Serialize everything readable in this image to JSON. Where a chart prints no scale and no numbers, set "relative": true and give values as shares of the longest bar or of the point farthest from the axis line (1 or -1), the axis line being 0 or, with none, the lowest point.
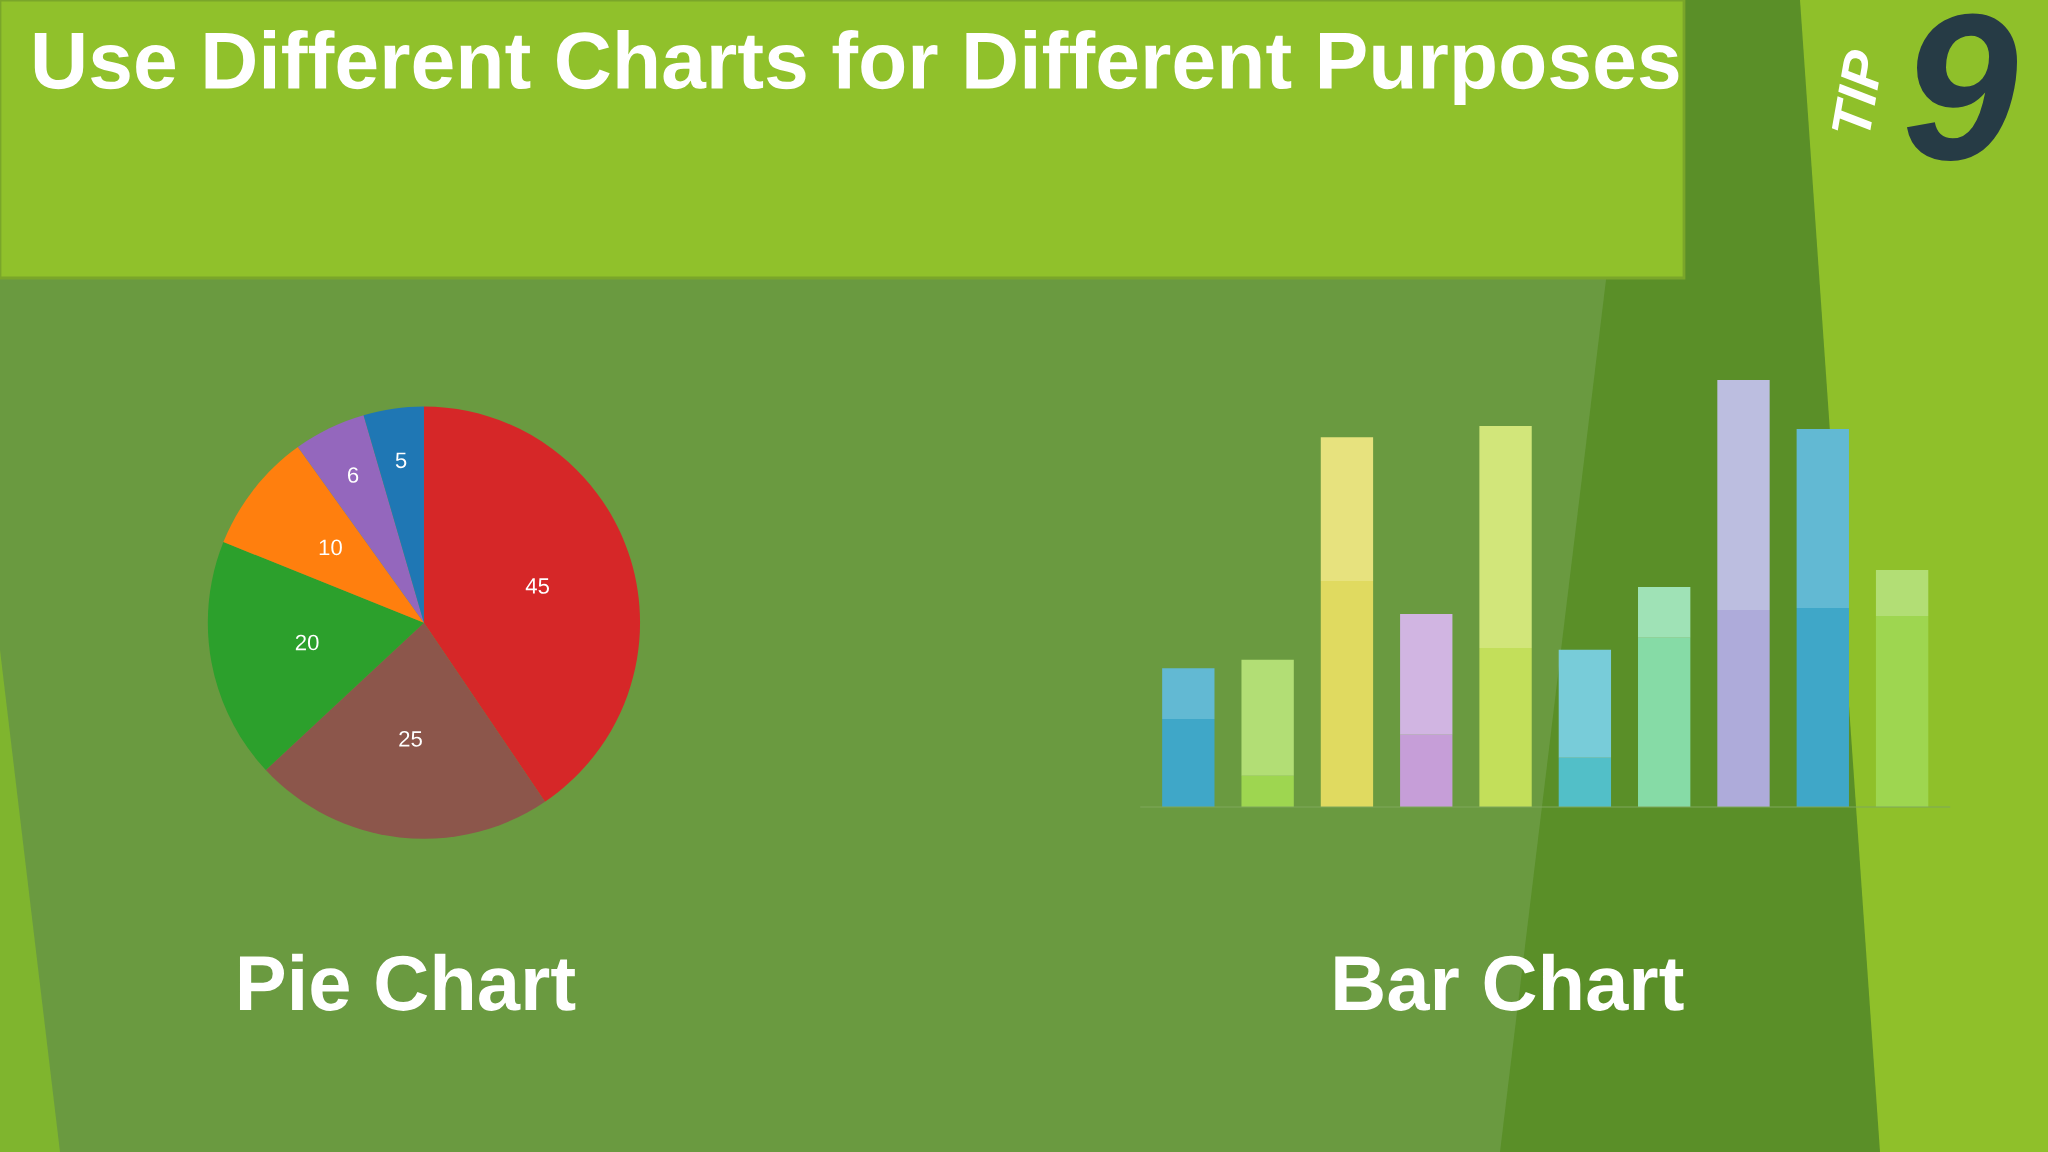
{
  "chart_data": [
    {
      "type": "pie",
      "title": "Pie Chart",
      "categories": [
        null,
        null,
        null,
        null,
        null,
        null
      ],
      "values": [
        45,
        25,
        20,
        10,
        6,
        5
      ],
      "colors": [
        "#d62728",
        "#8c564b",
        "#2ca02c",
        "#ff7f0e",
        "#9467bd",
        "#1f77b4"
      ],
      "data_labels": true,
      "annotations": [
        "Use Different Charts for Different Purposes",
        "TIP",
        "9"
      ]
    },
    {
      "type": "bar",
      "title": "Bar Chart",
      "relative": true,
      "stacked": true,
      "grid": false,
      "categories": [
        null,
        null,
        null,
        null,
        null,
        null,
        null,
        null,
        null,
        null
      ],
      "series": [
        {
          "values": [
            0.206,
            0.073,
            0.529,
            0.169,
            0.372,
            0.115,
            0.396,
            0.461,
            0.466,
            0.447
          ],
          "colors": [
            "#3fa7c8",
            "#9ed650",
            "#e0da60",
            "#c69ed8",
            "#c3df5a",
            "#52bfc8",
            "#86dba6",
            "#aeabda",
            "#3fa7c8",
            "#9ed650"
          ]
        },
        {
          "values": [
            0.119,
            0.272,
            0.337,
            0.283,
            0.52,
            0.253,
            0.119,
            0.539,
            0.419,
            0.108
          ],
          "colors": [
            "#62b9d3",
            "#b2de75",
            "#e7e27e",
            "#d1b5e2",
            "#d2e67a",
            "#78ccd9",
            "#9fe2b6",
            "#bcbee0",
            "#62b9d3",
            "#b2de75"
          ]
        }
      ]
    }
  ]
}
